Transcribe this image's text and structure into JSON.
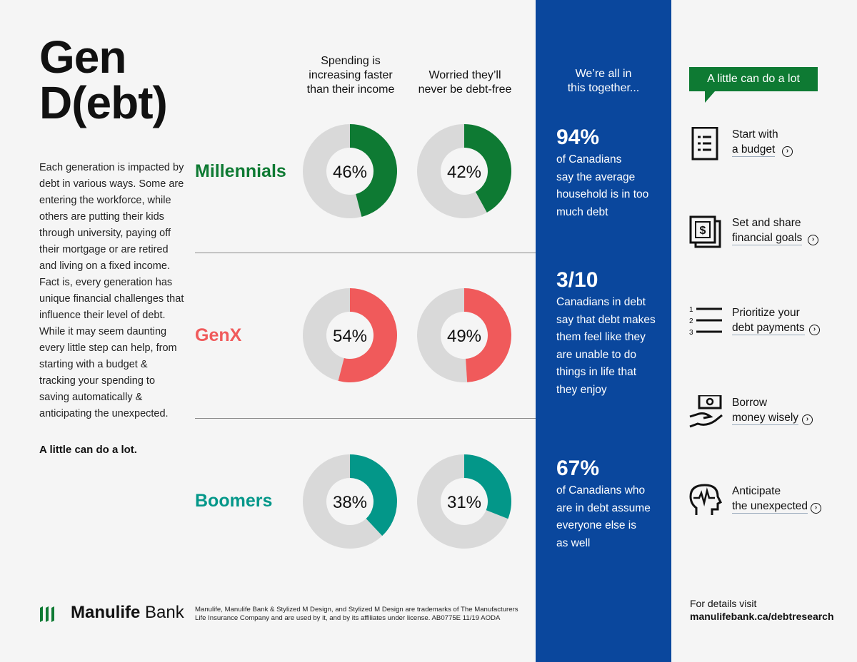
{
  "title": {
    "line1": "Gen",
    "line2": "D(ebt)"
  },
  "intro": "Each generation is impacted by debt in various ways. Some are entering the workforce, while others are putting their kids through university, paying off their mortgage or are retired and living on a fixed income. Fact is, every generation has unique financial challenges that influence their level of debt. While it may seem daunting every little step can help, from starting with a budget & tracking your spending to saving automatically & anticipating the unexpected.",
  "tagline": "A little can do a lot.",
  "chart_data": {
    "type": "pie",
    "categories": [
      "Spending is increasing faster than their income",
      "Worried they’ll never be debt-free"
    ],
    "series": [
      {
        "name": "Millennials",
        "values": [
          46,
          42
        ],
        "labels": [
          "46%",
          "42%"
        ],
        "color": "#0e7a33"
      },
      {
        "name": "GenX",
        "values": [
          54,
          49
        ],
        "labels": [
          "54%",
          "49%"
        ],
        "color": "#f05a5b"
      },
      {
        "name": "Boomers",
        "values": [
          38,
          31
        ],
        "labels": [
          "38%",
          "31%"
        ],
        "color": "#039789"
      }
    ],
    "remainder_color": "#d9d9d9",
    "center_color": "#f5f5f5"
  },
  "columns": {
    "col1": [
      "Spending is",
      "increasing faster",
      "than their income"
    ],
    "col2": [
      "Worried they’ll",
      "never be debt-free"
    ]
  },
  "blue_panel": {
    "heading": [
      "We’re all in",
      "this together..."
    ],
    "stats": [
      {
        "value": "94%",
        "text": [
          "of Canadians",
          "say the average",
          "household is in too",
          "much debt"
        ]
      },
      {
        "value": "3/10",
        "text": [
          "Canadians in debt",
          "say that debt makes",
          "them feel like they",
          "are unable to do",
          "things in life that",
          "they enjoy"
        ]
      },
      {
        "value": "67%",
        "text": [
          "of Canadians who",
          "are in debt assume",
          "everyone else is",
          "as well"
        ]
      }
    ],
    "color": "#0a479d"
  },
  "tips": {
    "heading": "A little can do a lot",
    "heading_color": "#0e7a33",
    "items": [
      {
        "line1": "Start with",
        "line2": "a budget",
        "icon": "budget-icon"
      },
      {
        "line1": "Set and share",
        "line2": "financial goals",
        "icon": "money-stack-icon"
      },
      {
        "line1": "Prioritize your",
        "line2": "debt payments",
        "icon": "numbered-list-icon"
      },
      {
        "line1": "Borrow",
        "line2": "money wisely",
        "icon": "hand-money-icon"
      },
      {
        "line1": "Anticipate",
        "line2": "the unexpected",
        "icon": "head-pulse-icon"
      }
    ],
    "list_numbers": [
      "1",
      "2",
      "3"
    ],
    "money_symbol": "$",
    "arrow": "›"
  },
  "footer": {
    "details_label": "For details visit",
    "details_url": "manulifebank.ca/debtresearch",
    "logo_brand": "Manulife",
    "logo_suffix": "Bank",
    "legal": "Manulife, Manulife Bank & Stylized M Design, and Stylized M Design are trademarks of The Manufacturers Life Insurance Company and are used by it, and by its affiliates under license.   AB0775E   11/19   AODA"
  }
}
